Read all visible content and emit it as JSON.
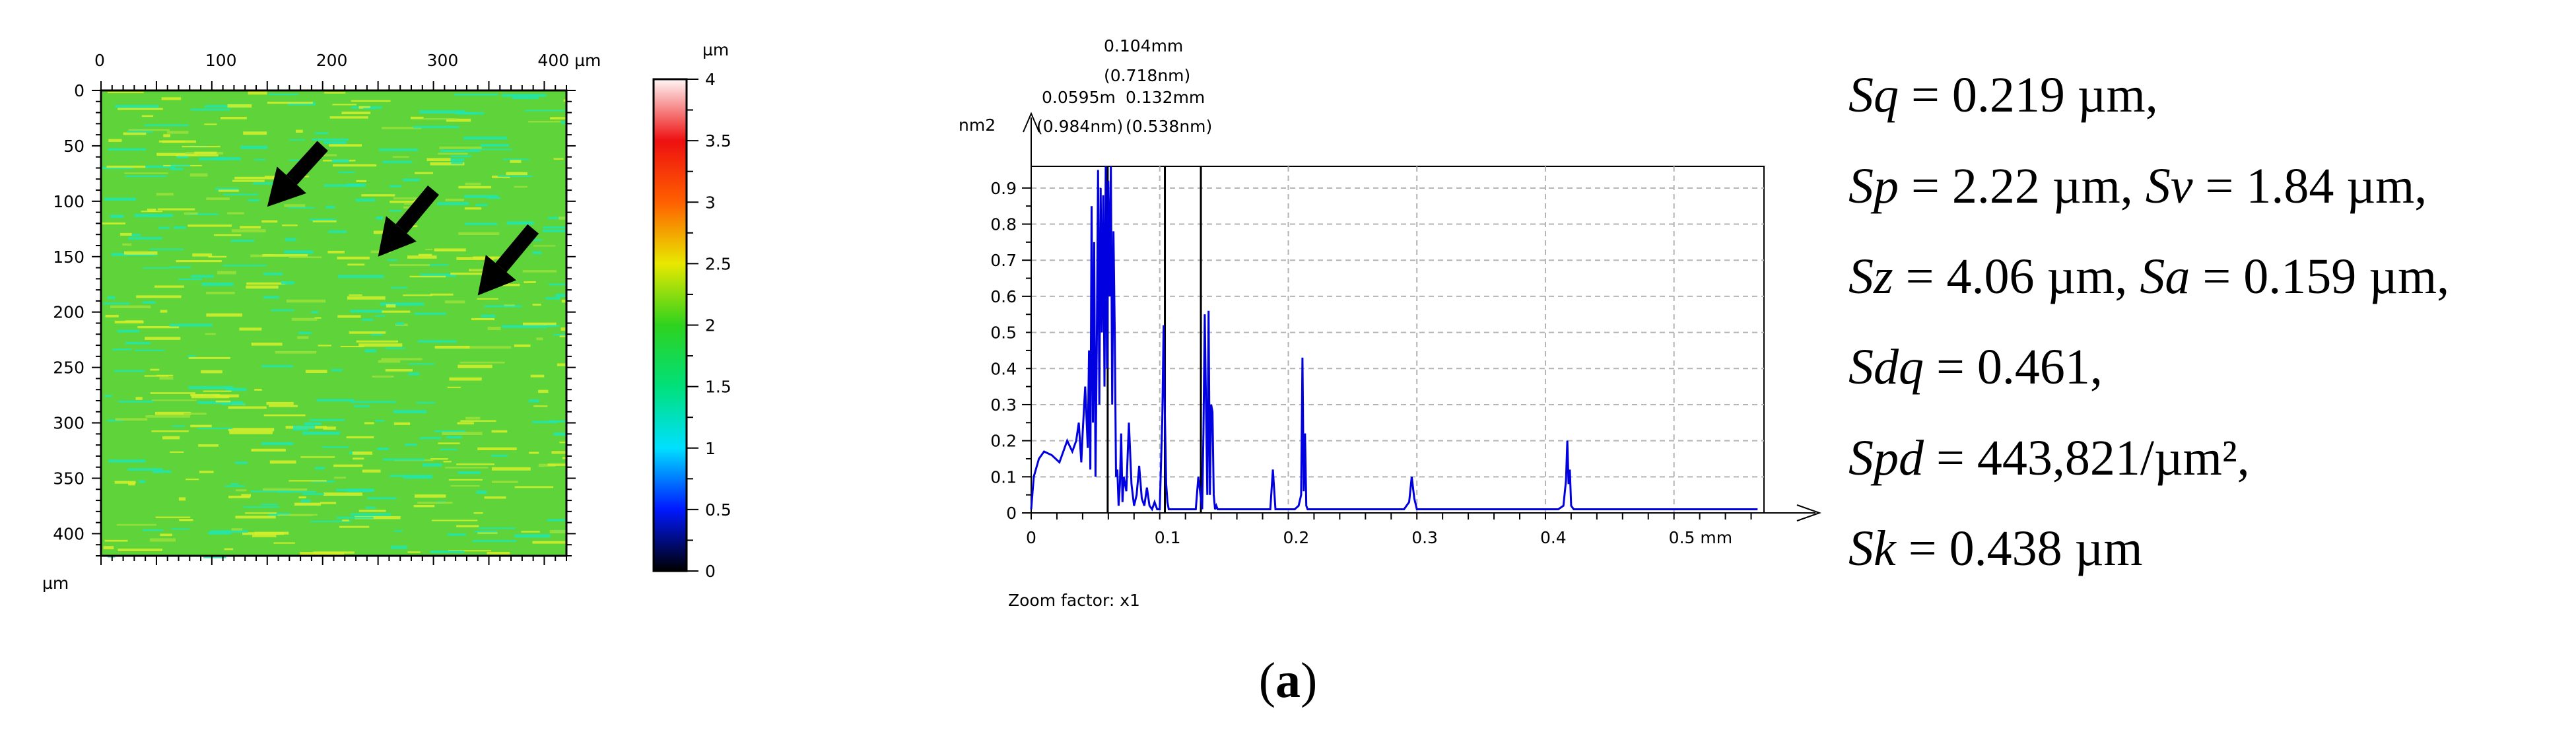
{
  "colors": {
    "map_base": "#5fd43a",
    "map_cyan": "#1fe6b4",
    "map_yellow": "#d8ee2a",
    "spectrum_line": "#0000e0",
    "grid": "#b4b4b4",
    "black": "#000000"
  },
  "chart_data": [
    {
      "type": "heatmap",
      "x_ticks": [
        "0",
        "100",
        "200",
        "300",
        "400 µm"
      ],
      "y_ticks": [
        "0",
        "50",
        "100",
        "150",
        "200",
        "250",
        "300",
        "350",
        "400"
      ],
      "y_unit": "µm",
      "xlim": [
        0,
        420
      ],
      "ylim": [
        0,
        420
      ],
      "annotations": [
        {
          "type": "arrow",
          "from": [
            200,
            50
          ],
          "to": [
            150,
            105
          ]
        },
        {
          "type": "arrow",
          "from": [
            300,
            90
          ],
          "to": [
            250,
            150
          ]
        },
        {
          "type": "arrow",
          "from": [
            390,
            125
          ],
          "to": [
            340,
            185
          ]
        }
      ],
      "colorbar": {
        "unit": "µm",
        "ticks": [
          "4",
          "3.5",
          "3",
          "2.5",
          "2",
          "1.5",
          "1",
          "0.5",
          "0"
        ],
        "range": [
          0,
          4
        ],
        "stops": [
          {
            "v": 0,
            "c": "#000000"
          },
          {
            "v": 0.5,
            "c": "#0018ff"
          },
          {
            "v": 1,
            "c": "#00e0ff"
          },
          {
            "v": 1.5,
            "c": "#00e07a"
          },
          {
            "v": 2,
            "c": "#2ed21e"
          },
          {
            "v": 2.5,
            "c": "#e8e800"
          },
          {
            "v": 3,
            "c": "#ff6000"
          },
          {
            "v": 3.5,
            "c": "#ee1010"
          },
          {
            "v": 4,
            "c": "#fff6f6"
          }
        ]
      }
    },
    {
      "type": "line",
      "y_unit": "nm2",
      "x_unit": "mm",
      "xlim": [
        0,
        0.57
      ],
      "ylim": [
        0,
        0.96
      ],
      "x_ticks": [
        {
          "v": 0,
          "label": "0"
        },
        {
          "v": 0.1,
          "label": "0.1"
        },
        {
          "v": 0.2,
          "label": "0.2"
        },
        {
          "v": 0.3,
          "label": "0.3"
        },
        {
          "v": 0.4,
          "label": "0.4"
        },
        {
          "v": 0.5,
          "label": "0.5 mm"
        }
      ],
      "y_ticks": [
        {
          "v": 0,
          "label": "0"
        },
        {
          "v": 0.1,
          "label": "0.1"
        },
        {
          "v": 0.2,
          "label": "0.2"
        },
        {
          "v": 0.3,
          "label": "0.3"
        },
        {
          "v": 0.4,
          "label": "0.4"
        },
        {
          "v": 0.5,
          "label": "0.5"
        },
        {
          "v": 0.6,
          "label": "0.6"
        },
        {
          "v": 0.7,
          "label": "0.7"
        },
        {
          "v": 0.8,
          "label": "0.8"
        },
        {
          "v": 0.9,
          "label": "0.9"
        }
      ],
      "grid": true,
      "markers": [
        {
          "x": 0.0595,
          "label1": "0.0595m",
          "label2": "(0.984nm)"
        },
        {
          "x": 0.104,
          "label1": "0.104mm",
          "label2": "(0.718nm)"
        },
        {
          "x": 0.132,
          "label1": "0.132mm",
          "label2": "(0.538nm)"
        }
      ],
      "series": [
        {
          "x": [
            0,
            0.002,
            0.006,
            0.01,
            0.016,
            0.022,
            0.028,
            0.032,
            0.035,
            0.037,
            0.039,
            0.04,
            0.042,
            0.044,
            0.045,
            0.046,
            0.047,
            0.048,
            0.049,
            0.05,
            0.051,
            0.052,
            0.053,
            0.054,
            0.055,
            0.056,
            0.057,
            0.058,
            0.059,
            0.06,
            0.061,
            0.062,
            0.063,
            0.064,
            0.065,
            0.066,
            0.067,
            0.068,
            0.069,
            0.07,
            0.071,
            0.072,
            0.074,
            0.076,
            0.078,
            0.08,
            0.082,
            0.084,
            0.086,
            0.088,
            0.09,
            0.092,
            0.094,
            0.096,
            0.098,
            0.1,
            0.102,
            0.103,
            0.104,
            0.105,
            0.106,
            0.107,
            0.108,
            0.11,
            0.113,
            0.116,
            0.12,
            0.124,
            0.128,
            0.13,
            0.132,
            0.133,
            0.134,
            0.135,
            0.136,
            0.137,
            0.138,
            0.139,
            0.14,
            0.141,
            0.142,
            0.143,
            0.144,
            0.145,
            0.147,
            0.15,
            0.16,
            0.17,
            0.18,
            0.186,
            0.188,
            0.19,
            0.2,
            0.205,
            0.208,
            0.21,
            0.211,
            0.212,
            0.213,
            0.214,
            0.215,
            0.217,
            0.23,
            0.25,
            0.27,
            0.29,
            0.294,
            0.296,
            0.298,
            0.3,
            0.31,
            0.33,
            0.36,
            0.39,
            0.41,
            0.414,
            0.416,
            0.417,
            0.418,
            0.419,
            0.42,
            0.422,
            0.45,
            0.5,
            0.55,
            0.565
          ],
          "values": [
            0.01,
            0.1,
            0.15,
            0.17,
            0.16,
            0.14,
            0.2,
            0.17,
            0.2,
            0.25,
            0.14,
            0.22,
            0.35,
            0.18,
            0.45,
            0.12,
            0.85,
            0.25,
            0.75,
            0.1,
            0.45,
            0.95,
            0.3,
            0.9,
            0.5,
            0.88,
            0.35,
            0.98,
            0.4,
            0.92,
            0.6,
            0.96,
            0.3,
            0.78,
            0.5,
            0.1,
            0.12,
            0.02,
            0.08,
            0.22,
            0.03,
            0.1,
            0.06,
            0.25,
            0.08,
            0.02,
            0.05,
            0.13,
            0.04,
            0.02,
            0.07,
            0.02,
            0.01,
            0.03,
            0.01,
            0.01,
            0.26,
            0.52,
            0.27,
            0.08,
            0.03,
            0.01,
            0.01,
            0.01,
            0.01,
            0.01,
            0.01,
            0.01,
            0.01,
            0.1,
            0.04,
            0.01,
            0.22,
            0.55,
            0.3,
            0.05,
            0.56,
            0.05,
            0.3,
            0.28,
            0.05,
            0.01,
            0.02,
            0.01,
            0.01,
            0.01,
            0.01,
            0.01,
            0.01,
            0.01,
            0.12,
            0.01,
            0.01,
            0.01,
            0.02,
            0.05,
            0.43,
            0.06,
            0.22,
            0.02,
            0.01,
            0.01,
            0.01,
            0.01,
            0.01,
            0.01,
            0.03,
            0.1,
            0.04,
            0.01,
            0.01,
            0.01,
            0.01,
            0.01,
            0.01,
            0.02,
            0.09,
            0.2,
            0.08,
            0.12,
            0.02,
            0.01,
            0.01,
            0.01,
            0.01,
            0.01
          ]
        }
      ],
      "footer": "Zoom factor: x1"
    }
  ],
  "parameters": [
    {
      "name": "Sq",
      "value": " = 0.219 µm,"
    },
    {
      "name": "Sp",
      "value": " = 2.22 µm, ",
      "name2": "Sv",
      "value2": " = 1.84 µm,"
    },
    {
      "name": "Sz",
      "value": " = 4.06 µm, ",
      "name2": "Sa",
      "value2": " = 0.159 µm,"
    },
    {
      "name": "Sdq",
      "value": " = 0.461,"
    },
    {
      "name": "Spd",
      "value": " = 443,821/µm²,"
    },
    {
      "name": "Sk",
      "value": " = 0.438 µm"
    }
  ],
  "caption": {
    "open": "(",
    "letter": "a",
    "close": ")"
  }
}
